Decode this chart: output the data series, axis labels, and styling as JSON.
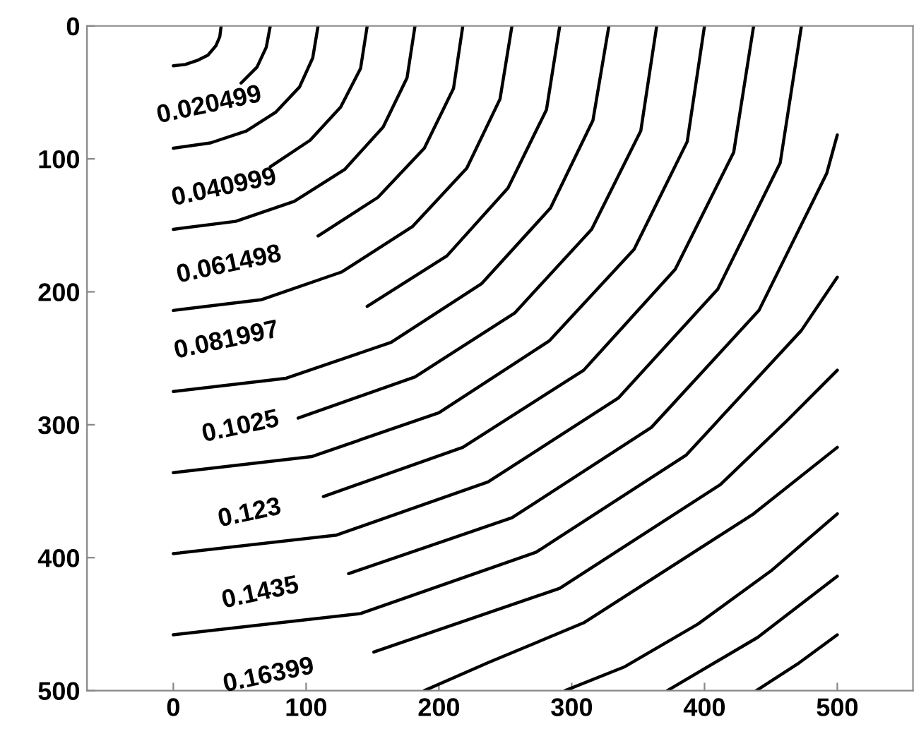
{
  "chart_data": {
    "type": "line",
    "xlim": [
      -65,
      557
    ],
    "ylim": [
      500,
      0
    ],
    "xticks": [
      0,
      100,
      200,
      300,
      400,
      500
    ],
    "yticks": [
      0,
      100,
      200,
      300,
      400,
      500
    ],
    "grid": false,
    "legend": false,
    "line_style": "solid",
    "series": [
      {
        "color": "#000000",
        "x": [
          36,
          35,
          32,
          26,
          18,
          9,
          0
        ],
        "values": [
          0,
          8,
          15,
          22,
          26,
          29,
          30
        ]
      },
      {
        "color": "#000000",
        "x": [
          73,
          70,
          63,
          51
        ],
        "values": [
          0,
          16,
          31,
          43
        ]
      },
      {
        "color": "#000000",
        "x": [
          109,
          105,
          95,
          77,
          55,
          28,
          0
        ],
        "values": [
          0,
          24,
          46,
          65,
          79,
          88,
          92
        ]
      },
      {
        "color": "#000000",
        "x": [
          146,
          141,
          126,
          103,
          73
        ],
        "values": [
          0,
          32,
          61,
          86,
          106
        ]
      },
      {
        "color": "#000000",
        "x": [
          182,
          176,
          158,
          129,
          91,
          47,
          0
        ],
        "values": [
          0,
          39,
          76,
          108,
          132,
          147,
          153
        ]
      },
      {
        "color": "#000000",
        "x": [
          218,
          211,
          189,
          154,
          109
        ],
        "values": [
          0,
          47,
          92,
          129,
          158
        ]
      },
      {
        "color": "#000000",
        "x": [
          255,
          246,
          221,
          180,
          127,
          66,
          0
        ],
        "values": [
          0,
          55,
          107,
          151,
          185,
          206,
          214
        ]
      },
      {
        "color": "#000000",
        "x": [
          291,
          281,
          252,
          206,
          146
        ],
        "values": [
          0,
          63,
          122,
          173,
          211
        ]
      },
      {
        "color": "#000000",
        "x": [
          328,
          316,
          284,
          232,
          164,
          85,
          0
        ],
        "values": [
          0,
          71,
          137,
          194,
          238,
          265,
          275
        ]
      },
      {
        "color": "#000000",
        "x": [
          364,
          352,
          315,
          257,
          182,
          94
        ],
        "values": [
          0,
          79,
          153,
          216,
          264,
          295
        ]
      },
      {
        "color": "#000000",
        "x": [
          400,
          387,
          347,
          283,
          200,
          104,
          0
        ],
        "values": [
          0,
          87,
          168,
          237,
          291,
          324,
          336
        ]
      },
      {
        "color": "#000000",
        "x": [
          437,
          422,
          378,
          309,
          218,
          113
        ],
        "values": [
          0,
          95,
          183,
          259,
          317,
          354
        ]
      },
      {
        "color": "#000000",
        "x": [
          473,
          457,
          410,
          335,
          237,
          123,
          0
        ],
        "values": [
          0,
          103,
          198,
          280,
          343,
          383,
          397
        ]
      },
      {
        "color": "#000000",
        "x": [
          500,
          492,
          441,
          360,
          255,
          132
        ],
        "values": [
          82,
          111,
          214,
          302,
          370,
          412
        ]
      },
      {
        "color": "#000000",
        "x": [
          500,
          473,
          386,
          273,
          141,
          0
        ],
        "values": [
          189,
          229,
          323,
          396,
          442,
          458
        ]
      },
      {
        "color": "#000000",
        "x": [
          500,
          462,
          412,
          291,
          151
        ],
        "values": [
          259,
          297,
          345,
          423,
          471
        ]
      },
      {
        "color": "#000000",
        "x": [
          500,
          437,
          309,
          237,
          189
        ],
        "values": [
          317,
          367,
          449,
          479,
          500
        ]
      },
      {
        "color": "#000000",
        "x": [
          500,
          450,
          395,
          340,
          295
        ],
        "values": [
          367,
          410,
          450,
          482,
          500
        ]
      },
      {
        "color": "#000000",
        "x": [
          500,
          440,
          372
        ],
        "values": [
          414,
          460,
          500
        ]
      },
      {
        "color": "#000000",
        "x": [
          500,
          470,
          439
        ],
        "values": [
          458,
          480,
          500
        ]
      }
    ],
    "annotations": [
      "0.020499",
      "0.040999",
      "0.061498",
      "0.081997",
      "0.1025",
      "0.123",
      "0.1435",
      "0.16399"
    ]
  }
}
